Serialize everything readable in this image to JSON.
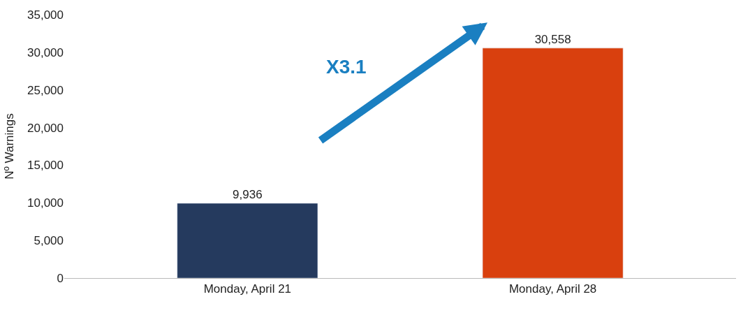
{
  "chart_data": {
    "type": "bar",
    "ylabel": "Nº Warnings",
    "categories": [
      "Monday, April 21",
      "Monday, April 28"
    ],
    "values": [
      9936,
      30558
    ],
    "colors": [
      "#253a5e",
      "#d9400e"
    ],
    "ylim": [
      0,
      35000
    ],
    "yticks": [
      0,
      {
        "value": 5000,
        "label": "5,000"
      },
      {
        "value": 10000,
        "label": "10,000"
      },
      {
        "value": 15000,
        "label": "15,000"
      },
      {
        "value": 20000,
        "label": "20,000"
      },
      {
        "value": 25000,
        "label": "25,000"
      },
      {
        "value": 30000,
        "label": "30,000"
      },
      {
        "value": 35000,
        "label": "35,000"
      }
    ],
    "value_labels": [
      "9,936",
      "30,558"
    ],
    "annotations": [
      "X3.1"
    ]
  }
}
